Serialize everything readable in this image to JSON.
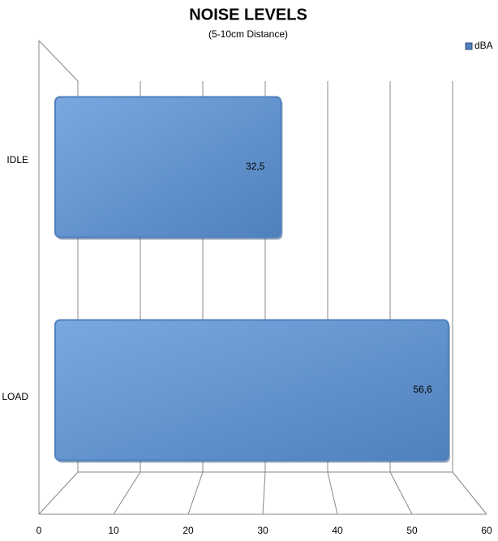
{
  "chart_data": {
    "type": "bar",
    "orientation": "horizontal",
    "title": "NOISE LEVELS",
    "subtitle": "(5-10cm Distance)",
    "categories": [
      "IDLE",
      "LOAD"
    ],
    "series": [
      {
        "name": "dBA",
        "color": "#4f81bd",
        "values": [
          32.5,
          56.6
        ],
        "value_labels": [
          "32,5",
          "56,6"
        ]
      }
    ],
    "xlim": [
      0,
      60
    ],
    "xticks": [
      0,
      10,
      20,
      30,
      40,
      50,
      60
    ],
    "grid": true,
    "legend": "top-right"
  }
}
